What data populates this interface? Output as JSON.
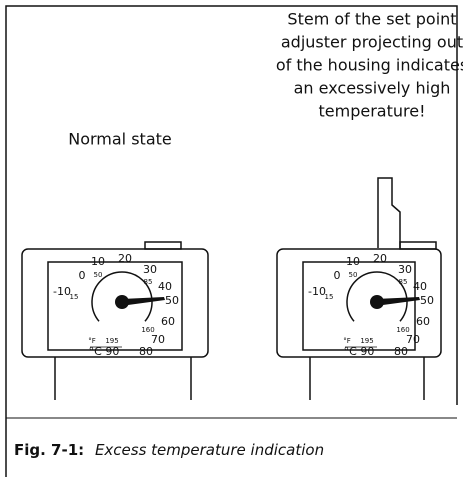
{
  "left_label": "Normal state",
  "right_label_lines": [
    "Stem of the set point",
    "adjuster projecting out",
    "of the housing indicates",
    "an excessively high",
    "temperature!"
  ],
  "dial_labels": [
    "10",
    "20",
    "30",
    "40",
    "50",
    "60",
    "70",
    "80",
    "0",
    "-10",
    "15",
    "50",
    "85",
    "160",
    "195",
    "°F",
    "°C 90"
  ],
  "caption": {
    "number": "Fig. 7-1:",
    "text": "Excess temperature indication"
  }
}
